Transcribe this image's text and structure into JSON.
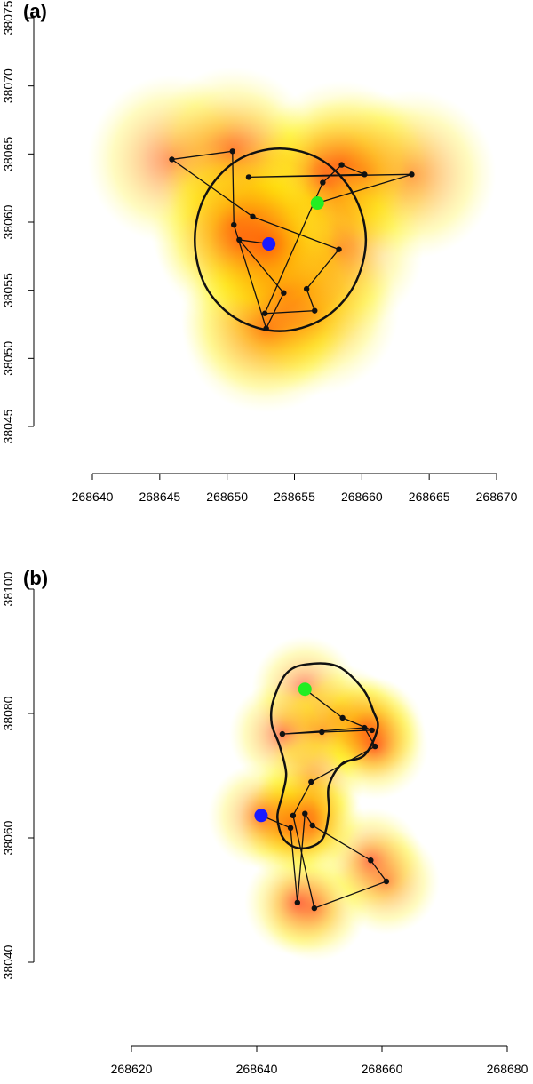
{
  "chart_data": [
    {
      "type": "track",
      "title": "(a)",
      "x": [
        268656.7,
        268663.7,
        268651.6,
        268660.2,
        268658.5,
        268657.1,
        268652.8,
        268656.5,
        268655.9,
        268658.3,
        268651.9,
        268645.9,
        268650.4,
        268650.5,
        268652.9,
        268654.2,
        268650.9,
        268653.1
      ],
      "y": [
        38061.4,
        38063.5,
        38063.3,
        38063.5,
        38064.2,
        38062.9,
        38053.3,
        38053.5,
        38055.1,
        38058.0,
        38060.4,
        38064.6,
        38065.2,
        38059.8,
        38052.2,
        38054.8,
        38058.7,
        38058.4
      ],
      "contour": {
        "x": [
          268660.3,
          268659.4,
          268657.1,
          268653.9,
          268650.7,
          268648.4,
          268647.6,
          268648.4,
          268650.7,
          268653.9,
          268657.1,
          268659.4
        ],
        "y": [
          38058.7,
          38062.0,
          38064.5,
          38065.4,
          38064.5,
          38062.0,
          38058.7,
          38055.3,
          38052.9,
          38052.0,
          38052.9,
          38055.3
        ]
      },
      "start_color": "#22ee22",
      "end_color": "#1a1aff",
      "xlim": [
        268640,
        268670
      ],
      "ylim": [
        38045,
        38075
      ],
      "xticks": [
        268640,
        268645,
        268650,
        268655,
        268660,
        268665,
        268670
      ],
      "yticks": [
        38045,
        38050,
        38055,
        38060,
        38065,
        38070,
        38075
      ]
    },
    {
      "type": "track",
      "title": "(b)",
      "x": [
        268647.7,
        268653.7,
        268658.4,
        268650.4,
        268644.1,
        268657.2,
        268658.9,
        268648.7,
        268645.8,
        268649.2,
        268660.7,
        268658.2,
        268648.9,
        268647.7,
        268646.5,
        268645.4,
        268640.7
      ],
      "y": [
        38083.9,
        38079.3,
        38077.3,
        38077.0,
        38076.7,
        38077.7,
        38074.7,
        38069.0,
        38063.6,
        38048.7,
        38053.0,
        38056.4,
        38062.0,
        38063.9,
        38049.6,
        38061.6,
        38063.6
      ],
      "contour": {
        "x": [
          268642.6,
          268644.7,
          268647.9,
          268652.9,
          268656.9,
          268658.6,
          268659.3,
          268657.2,
          268653.6,
          268651.5,
          268651.5,
          268650.4,
          268647.2,
          268644.4,
          268643.3,
          268644.1,
          268644.7,
          268643.7,
          268642.4
        ],
        "y": [
          38081.9,
          38086.4,
          38087.9,
          38087.6,
          38084.0,
          38080.4,
          38077.6,
          38073.3,
          38071.9,
          38068.3,
          38064.0,
          38059.7,
          38058.3,
          38059.7,
          38063.3,
          38066.9,
          38070.4,
          38074.7,
          38078.3
        ]
      },
      "start_color": "#22ee22",
      "end_color": "#1a1aff",
      "xlim": [
        268620,
        268680
      ],
      "ylim": [
        38040,
        38100
      ],
      "xticks": [
        268620,
        268640,
        268660,
        268680
      ],
      "yticks": [
        38040,
        38060,
        38080,
        38100
      ]
    }
  ]
}
